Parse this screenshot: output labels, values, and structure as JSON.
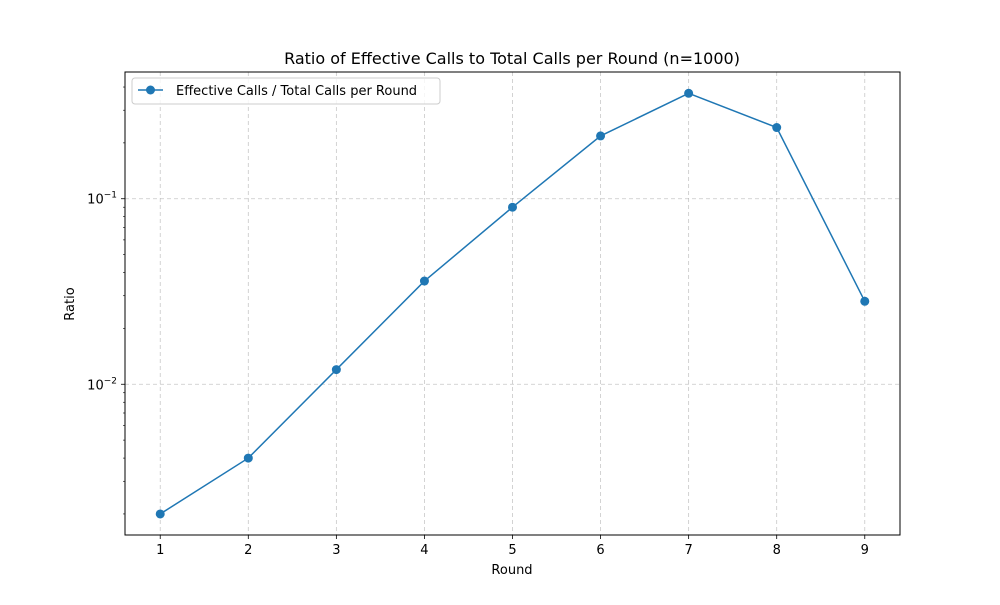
{
  "chart_data": {
    "type": "line",
    "title": "Ratio of Effective Calls to Total Calls per Round (n=1000)",
    "xlabel": "Round",
    "ylabel": "Ratio",
    "x": [
      1,
      2,
      3,
      4,
      5,
      6,
      7,
      8,
      9
    ],
    "series": [
      {
        "name": "Effective Calls / Total Calls per Round",
        "values": [
          0.002,
          0.004,
          0.012,
          0.036,
          0.09,
          0.218,
          0.37,
          0.242,
          0.028
        ],
        "color": "#1f77b4",
        "marker": "circle"
      }
    ],
    "xticks": [
      1,
      2,
      3,
      4,
      5,
      6,
      7,
      8,
      9
    ],
    "xlim": [
      0.6,
      9.4
    ],
    "yscale": "log",
    "ylim": [
      0.00154,
      0.482
    ],
    "yticks": [
      {
        "value": 0.01,
        "base": "10",
        "exp": "−2"
      },
      {
        "value": 0.1,
        "base": "10",
        "exp": "−1"
      }
    ],
    "grid": true,
    "legend": "top-left"
  }
}
